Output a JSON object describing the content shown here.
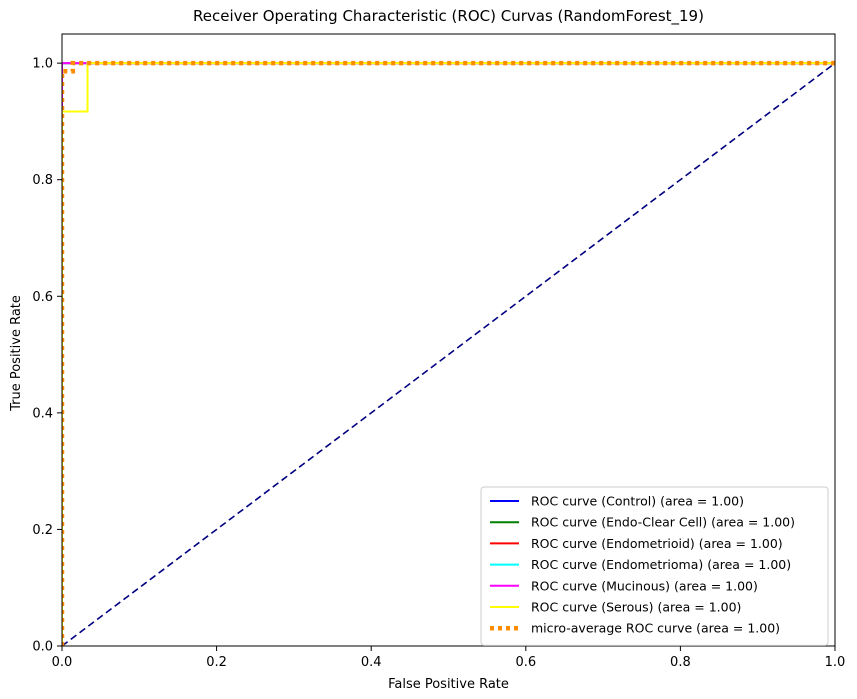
{
  "chart_data": {
    "type": "line",
    "title": "Receiver Operating Characteristic (ROC) Curvas (RandomForest_19)",
    "xlabel": "False Positive Rate",
    "ylabel": "True Positive Rate",
    "xlim": [
      0,
      1.0
    ],
    "ylim": [
      0,
      1.05
    ],
    "xticks": [
      0.0,
      0.2,
      0.4,
      0.6,
      0.8,
      1.0
    ],
    "yticks": [
      0.0,
      0.2,
      0.4,
      0.6,
      0.8,
      1.0
    ],
    "xtick_labels": [
      "0.0",
      "0.2",
      "0.4",
      "0.6",
      "0.8",
      "1.0"
    ],
    "ytick_labels": [
      "0.0",
      "0.2",
      "0.4",
      "0.6",
      "0.8",
      "1.0"
    ],
    "grid": false,
    "legend_position": "bottom-right",
    "series": [
      {
        "name": "ROC curve (Control) (area = 1.00)",
        "color": "#0000ff",
        "style": "solid",
        "points": [
          [
            0,
            0
          ],
          [
            0,
            1
          ],
          [
            1,
            1
          ]
        ]
      },
      {
        "name": "ROC curve (Endo-Clear Cell) (area = 1.00)",
        "color": "#008000",
        "style": "solid",
        "points": [
          [
            0,
            0
          ],
          [
            0,
            1
          ],
          [
            1,
            1
          ]
        ]
      },
      {
        "name": "ROC curve (Endometrioid) (area = 1.00)",
        "color": "#ff0000",
        "style": "solid",
        "points": [
          [
            0,
            0
          ],
          [
            0,
            1
          ],
          [
            1,
            1
          ]
        ]
      },
      {
        "name": "ROC curve (Endometrioma) (area = 1.00)",
        "color": "#00ffff",
        "style": "solid",
        "points": [
          [
            0,
            0
          ],
          [
            0,
            1
          ],
          [
            1,
            1
          ]
        ]
      },
      {
        "name": "ROC curve (Mucinous) (area = 1.00)",
        "color": "#ff00ff",
        "style": "solid",
        "points": [
          [
            0,
            0
          ],
          [
            0,
            1
          ],
          [
            0.02,
            1
          ],
          [
            1,
            1
          ]
        ]
      },
      {
        "name": "ROC curve (Serous) (area = 1.00)",
        "color": "#ffff00",
        "style": "solid",
        "points": [
          [
            0,
            0
          ],
          [
            0,
            0.917
          ],
          [
            0.033,
            0.917
          ],
          [
            0.033,
            1
          ],
          [
            1,
            1
          ]
        ]
      },
      {
        "name": "micro-average ROC curve (area = 1.00)",
        "color": "#ff8c00",
        "style": "dotted",
        "points": [
          [
            0,
            0
          ],
          [
            0,
            0.986
          ],
          [
            0.014,
            0.986
          ],
          [
            0.014,
            1
          ],
          [
            1,
            1
          ]
        ]
      }
    ],
    "reference_line": {
      "color": "#000080",
      "style": "dashed",
      "points": [
        [
          0,
          0
        ],
        [
          1,
          1
        ]
      ]
    }
  }
}
